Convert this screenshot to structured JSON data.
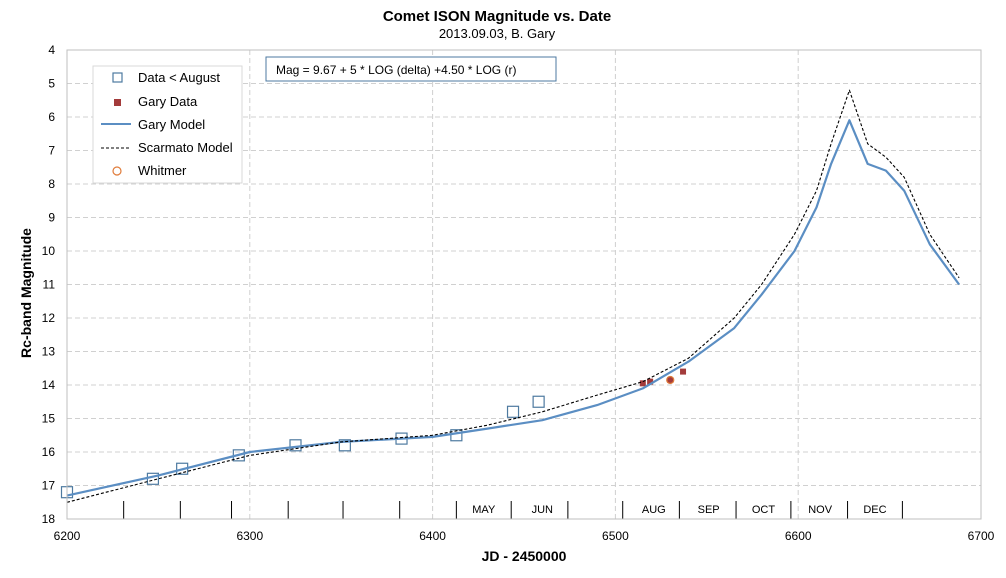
{
  "chart_data": {
    "type": "scatter",
    "title": "Comet ISON Magnitude  vs. Date",
    "subtitle": "2013.09.03,  B. Gary",
    "xlabel": "JD - 2450000",
    "ylabel": "Rc-band Magnitude",
    "xlim": [
      6200,
      6700
    ],
    "ylim": [
      4,
      18
    ],
    "y_inverted": true,
    "x_ticks": [
      "6200",
      "6300",
      "6400",
      "6500",
      "6600",
      "6700"
    ],
    "y_ticks": [
      "4",
      "5",
      "6",
      "7",
      "8",
      "9",
      "10",
      "11",
      "12",
      "13",
      "14",
      "15",
      "16",
      "17",
      "18"
    ],
    "grid": true,
    "legend_position": "top-left",
    "annotation": "Mag = 9.67 + 5 * LOG (delta) +4.50 * LOG (r)",
    "months": [
      {
        "label": "MAY",
        "x": 6428
      },
      {
        "label": "JUN",
        "x": 6460
      },
      {
        "label": "AUG",
        "x": 6521
      },
      {
        "label": "SEP",
        "x": 6551
      },
      {
        "label": "OCT",
        "x": 6581
      },
      {
        "label": "NOV",
        "x": 6612
      },
      {
        "label": "DEC",
        "x": 6642
      }
    ],
    "month_dividers": [
      6200,
      6231,
      6262,
      6290,
      6321,
      6351,
      6382,
      6413,
      6443,
      6474,
      6504,
      6535,
      6566,
      6596,
      6627,
      6657
    ],
    "series": [
      {
        "name": "Data < August",
        "kind": "marker",
        "marker": "open-square",
        "color": "#4e7aa0",
        "x": [
          6200,
          6247,
          6263,
          6294,
          6325,
          6352,
          6383,
          6413,
          6444,
          6458
        ],
        "y": [
          17.2,
          16.8,
          16.5,
          16.1,
          15.8,
          15.8,
          15.6,
          15.5,
          14.8,
          14.5
        ]
      },
      {
        "name": "Gary Data",
        "kind": "marker",
        "marker": "filled-square",
        "color": "#a33b3b",
        "x": [
          6515,
          6519,
          6530,
          6537
        ],
        "y": [
          13.95,
          13.9,
          13.85,
          13.6
        ]
      },
      {
        "name": "Gary Model",
        "kind": "line",
        "color": "#5b8ec3",
        "x": [
          6200,
          6250,
          6300,
          6350,
          6400,
          6430,
          6460,
          6490,
          6515,
          6540,
          6565,
          6580,
          6598,
          6610,
          6618,
          6628,
          6638,
          6648,
          6658,
          6672,
          6688
        ],
        "y": [
          17.3,
          16.7,
          16.0,
          15.7,
          15.55,
          15.3,
          15.05,
          14.6,
          14.1,
          13.3,
          12.3,
          11.3,
          10.0,
          8.7,
          7.4,
          6.1,
          7.4,
          7.6,
          8.2,
          9.8,
          11.0
        ]
      },
      {
        "name": "Scarmato Model",
        "kind": "line-dashed",
        "color": "#000000",
        "x": [
          6200,
          6250,
          6300,
          6350,
          6400,
          6430,
          6460,
          6490,
          6515,
          6540,
          6565,
          6580,
          6598,
          6610,
          6618,
          6628,
          6638,
          6648,
          6658,
          6672,
          6688
        ],
        "y": [
          17.5,
          16.8,
          16.1,
          15.7,
          15.5,
          15.2,
          14.8,
          14.3,
          13.9,
          13.2,
          12.0,
          11.0,
          9.5,
          8.2,
          6.8,
          5.2,
          6.8,
          7.2,
          7.8,
          9.5,
          10.8
        ]
      },
      {
        "name": "Whitmer",
        "kind": "marker",
        "marker": "open-circle",
        "color": "#e07b39",
        "x": [
          6530
        ],
        "y": [
          13.85
        ]
      }
    ]
  }
}
